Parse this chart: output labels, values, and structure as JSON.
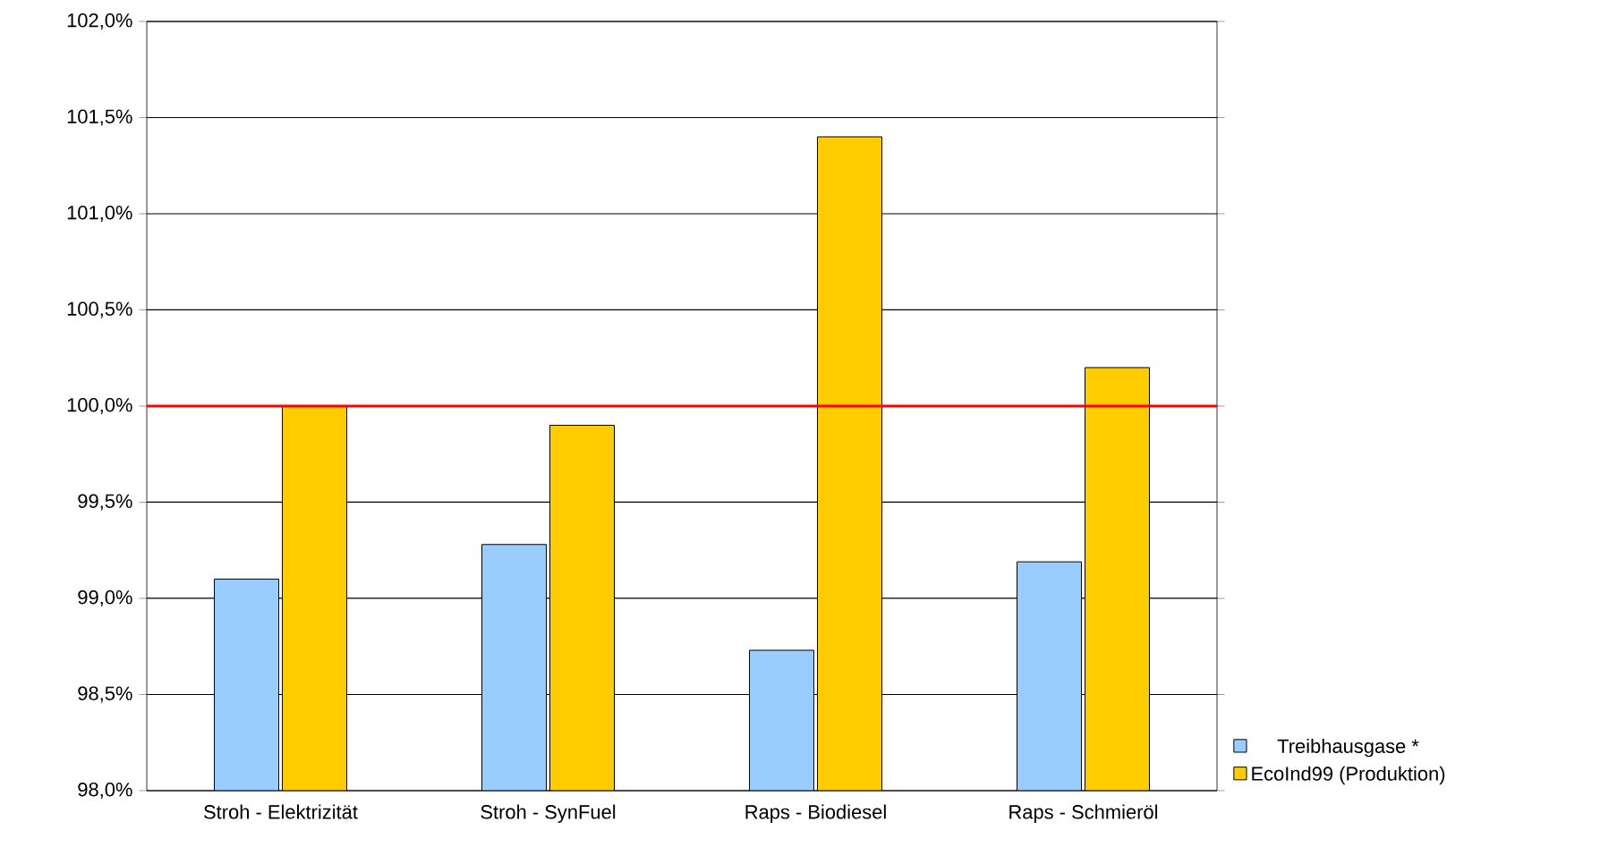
{
  "chart_data": {
    "type": "bar",
    "categories": [
      "Stroh - Elektrizität",
      "Stroh - SynFuel",
      "Raps - Biodiesel",
      "Raps - Schmieröl"
    ],
    "series": [
      {
        "name": "Treibhausgase *",
        "color": "#99ccff",
        "values": [
          99.1,
          99.28,
          98.73,
          99.19
        ]
      },
      {
        "name": "EcoInd99 (Produktion)",
        "color": "#ffcc00",
        "values": [
          100.0,
          99.9,
          101.4,
          100.2
        ]
      }
    ],
    "ylim": [
      98,
      102
    ],
    "yticks": [
      {
        "value": 98,
        "label": "98,0%"
      },
      {
        "value": 98.5,
        "label": "98,5%"
      },
      {
        "value": 99,
        "label": "99,0%"
      },
      {
        "value": 99.5,
        "label": "99,5%"
      },
      {
        "value": 100,
        "label": "100,0%"
      },
      {
        "value": 100.5,
        "label": "100,5%"
      },
      {
        "value": 101,
        "label": "101,0%"
      },
      {
        "value": 101.5,
        "label": "101,5%"
      },
      {
        "value": 102,
        "label": "102,0%"
      }
    ],
    "grid": "y",
    "legend": "bottom right",
    "ref_lines": [
      {
        "axis": "y",
        "value": 100,
        "color": "#ff0000"
      }
    ]
  }
}
